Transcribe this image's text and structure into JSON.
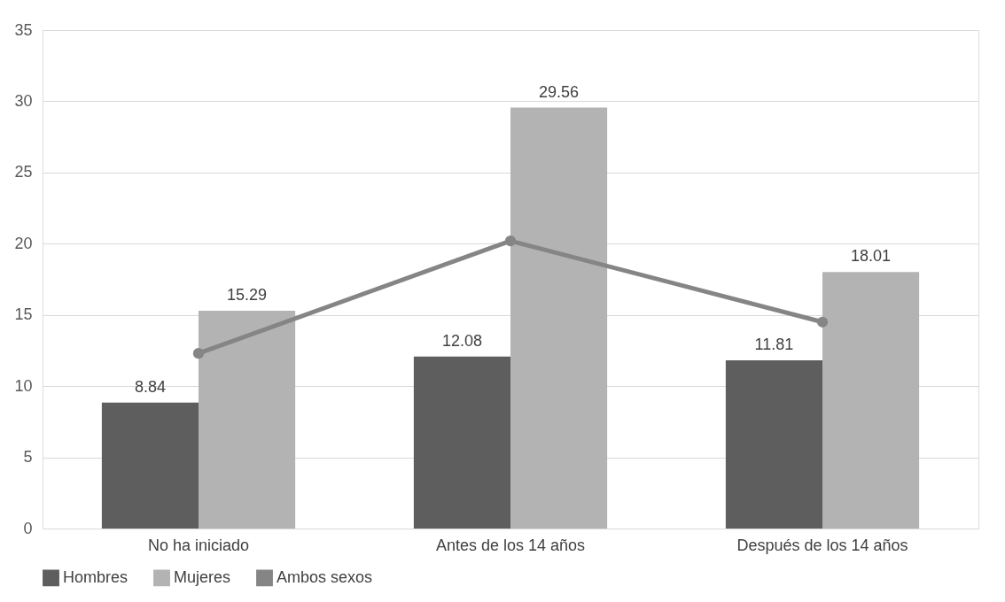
{
  "chart_data": {
    "type": "bar",
    "categories": [
      "No ha iniciado",
      "Antes de los 14 años",
      "Después de los 14 años"
    ],
    "series": [
      {
        "name": "Hombres",
        "color": "#5e5e5e",
        "values": [
          8.84,
          12.08,
          11.81
        ],
        "value_labels": [
          "8.84",
          "12.08",
          "11.81"
        ]
      },
      {
        "name": "Mujeres",
        "color": "#b3b3b3",
        "values": [
          15.29,
          29.56,
          18.01
        ],
        "value_labels": [
          "15.29",
          "29.56",
          "18.01"
        ]
      },
      {
        "name": "Ambos sexos",
        "type": "line",
        "color": "#858585",
        "marker": "circle",
        "values": [
          12.3,
          20.2,
          14.5
        ]
      }
    ],
    "ylim": [
      0,
      35
    ],
    "yticks": [
      0,
      5,
      10,
      15,
      20,
      25,
      30,
      35
    ],
    "grid": "y",
    "legend": "bottom"
  }
}
